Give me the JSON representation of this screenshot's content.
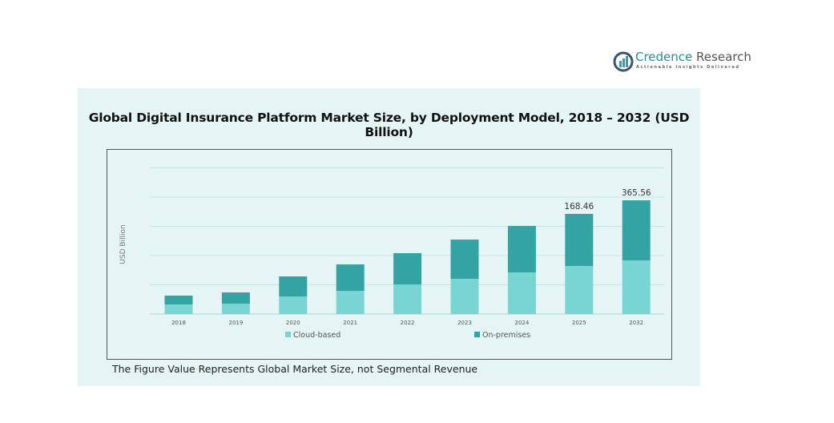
{
  "logo": {
    "name_part1": "Credence",
    "name_part2": " Research",
    "tagline": "Actionable Insights Delivered"
  },
  "chart_data": {
    "type": "bar",
    "stacked": true,
    "title": "Global Digital Insurance Platform Market Size, by Deployment Model, 2018 – 2032 (USD Billion)",
    "ylabel": "USD Billion",
    "xlabel": "",
    "categories": [
      "2018",
      "2019",
      "2020",
      "2021",
      "2022",
      "2023",
      "2024",
      "2025",
      "2032"
    ],
    "series": [
      {
        "name": "Cloud-based",
        "color": "#79d5d3",
        "values": [
          16.2,
          17.5,
          29.6,
          39.1,
          49.8,
          59.3,
          70.1,
          80.9,
          172.5
        ]
      },
      {
        "name": "On-premises",
        "color": "#33a3a3",
        "values": [
          14.8,
          18.9,
          33.7,
          44.4,
          52.6,
          66.0,
          78.1,
          87.56,
          193.06
        ]
      }
    ],
    "data_labels": [
      {
        "category": "2025",
        "text": "168.46"
      },
      {
        "category": "2032",
        "text": "365.56"
      }
    ],
    "grid": true,
    "y_tick_labels_shown": false,
    "legend_position": "bottom"
  },
  "footnote": "The Figure Value Represents Global Market Size, not Segmental Revenue"
}
